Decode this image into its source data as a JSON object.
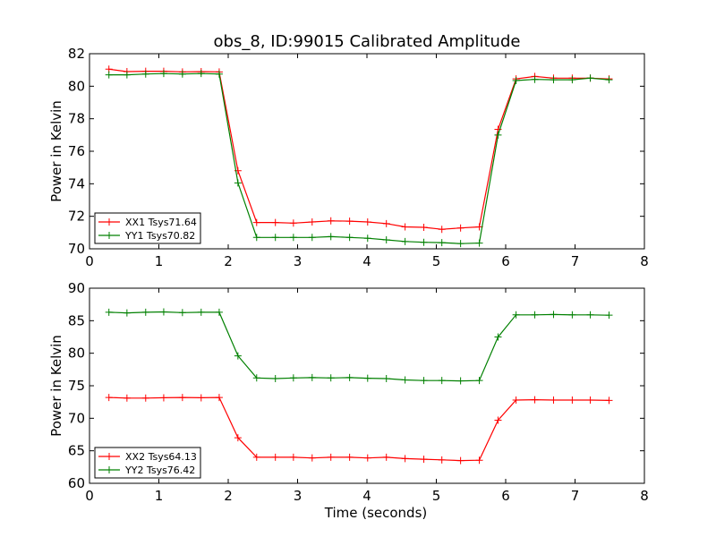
{
  "figure": {
    "title": "obs_8, ID:99015 Calibrated Amplitude"
  },
  "chart_data": [
    {
      "type": "line",
      "title": "obs_8, ID:99015 Calibrated Amplitude",
      "xlabel": "",
      "ylabel": "Power in Kelvin",
      "xlim": [
        0,
        8
      ],
      "ylim": [
        70,
        82
      ],
      "xticks": [
        0,
        1,
        2,
        3,
        4,
        5,
        6,
        7,
        8
      ],
      "yticks": [
        70,
        72,
        74,
        76,
        78,
        80,
        82
      ],
      "grid": false,
      "legend_position": "lower-left",
      "x": [
        0.28,
        0.54,
        0.81,
        1.07,
        1.34,
        1.61,
        1.87,
        2.14,
        2.41,
        2.68,
        2.94,
        3.21,
        3.48,
        3.75,
        4.01,
        4.28,
        4.55,
        4.82,
        5.08,
        5.35,
        5.62,
        5.89,
        6.15,
        6.42,
        6.69,
        6.96,
        7.22,
        7.49
      ],
      "series": [
        {
          "name": "XX1 Tsys71.64",
          "color": "#ff0000",
          "values": [
            81.05,
            80.9,
            80.92,
            80.92,
            80.88,
            80.9,
            80.88,
            74.8,
            71.62,
            71.62,
            71.58,
            71.65,
            71.72,
            71.7,
            71.65,
            71.55,
            71.35,
            71.32,
            71.2,
            71.28,
            71.35,
            77.35,
            80.45,
            80.6,
            80.5,
            80.5,
            80.5,
            80.45
          ]
        },
        {
          "name": "YY1 Tsys70.82",
          "color": "#008000",
          "values": [
            80.7,
            80.7,
            80.75,
            80.78,
            80.75,
            80.78,
            80.75,
            74.05,
            70.7,
            70.7,
            70.7,
            70.7,
            70.75,
            70.7,
            70.65,
            70.55,
            70.45,
            70.4,
            70.38,
            70.32,
            70.35,
            77.0,
            80.35,
            80.42,
            80.4,
            80.4,
            80.5,
            80.4
          ]
        }
      ]
    },
    {
      "type": "line",
      "title": "",
      "xlabel": "Time (seconds)",
      "ylabel": "Power in Kelvin",
      "xlim": [
        0,
        8
      ],
      "ylim": [
        60,
        90
      ],
      "xticks": [
        0,
        1,
        2,
        3,
        4,
        5,
        6,
        7,
        8
      ],
      "yticks": [
        60,
        65,
        70,
        75,
        80,
        85,
        90
      ],
      "grid": false,
      "legend_position": "lower-left",
      "x": [
        0.28,
        0.54,
        0.81,
        1.07,
        1.34,
        1.61,
        1.87,
        2.14,
        2.41,
        2.68,
        2.94,
        3.21,
        3.48,
        3.75,
        4.01,
        4.28,
        4.55,
        4.82,
        5.08,
        5.35,
        5.62,
        5.89,
        6.15,
        6.42,
        6.69,
        6.96,
        7.22,
        7.49
      ],
      "series": [
        {
          "name": "XX2 Tsys64.13",
          "color": "#ff0000",
          "values": [
            73.2,
            73.1,
            73.1,
            73.15,
            73.2,
            73.15,
            73.2,
            67.0,
            64.0,
            64.0,
            64.0,
            63.9,
            64.0,
            64.0,
            63.9,
            64.0,
            63.8,
            63.7,
            63.6,
            63.5,
            63.55,
            69.7,
            72.8,
            72.85,
            72.8,
            72.8,
            72.8,
            72.75
          ]
        },
        {
          "name": "YY2 Tsys76.42",
          "color": "#008000",
          "values": [
            86.3,
            86.2,
            86.3,
            86.35,
            86.25,
            86.3,
            86.3,
            79.6,
            76.2,
            76.1,
            76.2,
            76.25,
            76.2,
            76.25,
            76.15,
            76.1,
            75.9,
            75.8,
            75.8,
            75.75,
            75.8,
            82.5,
            85.9,
            85.9,
            85.95,
            85.9,
            85.9,
            85.85
          ]
        }
      ]
    }
  ]
}
